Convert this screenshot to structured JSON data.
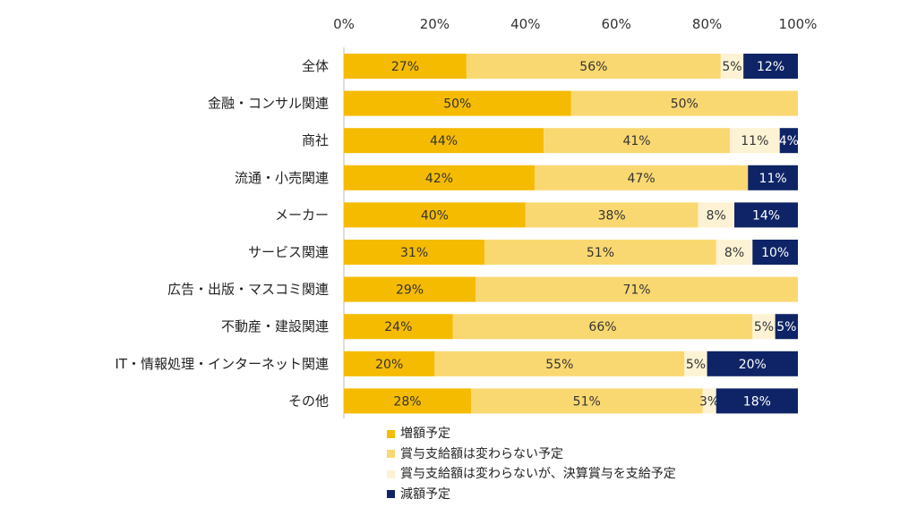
{
  "chart_data": {
    "type": "bar",
    "orientation": "horizontal",
    "stacked": true,
    "x_ticks": [
      "0%",
      "20%",
      "40%",
      "60%",
      "80%",
      "100%"
    ],
    "xlim": [
      0,
      100
    ],
    "categories": [
      "全体",
      "金融・コンサル関連",
      "商社",
      "流通・小売関連",
      "メーカー",
      "サービス関連",
      "広告・出版・マスコミ関連",
      "不動産・建設関連",
      "IT・情報処理・インターネット関連",
      "その他"
    ],
    "series": [
      {
        "name": "増額予定",
        "color": "#f5bb00",
        "label_color": "#333333",
        "values": [
          27,
          50,
          44,
          42,
          40,
          31,
          29,
          24,
          20,
          28
        ]
      },
      {
        "name": "賞与支給額は変わらない予定",
        "color": "#fad871",
        "label_color": "#333333",
        "values": [
          56,
          50,
          41,
          47,
          38,
          51,
          71,
          66,
          55,
          51
        ]
      },
      {
        "name": "賞与支給額は変わらないが、決算賞与を支給予定",
        "color": "#fdf3d4",
        "label_color": "#333333",
        "values": [
          5,
          0,
          11,
          0,
          8,
          8,
          0,
          5,
          5,
          3
        ]
      },
      {
        "name": "減額予定",
        "color": "#0f2466",
        "label_color": "#ffffff",
        "values": [
          12,
          0,
          4,
          11,
          14,
          10,
          0,
          5,
          20,
          18
        ]
      }
    ],
    "data_labels": [
      [
        "27%",
        "50%",
        "44%",
        "42%",
        "40%",
        "31%",
        "29%",
        "24%",
        "20%",
        "28%"
      ],
      [
        "56%",
        "50%",
        "41%",
        "47%",
        "38%",
        "51%",
        "71%",
        "66%",
        "55%",
        "51%"
      ],
      [
        "5%",
        "",
        "11%",
        "",
        "8%",
        "8%",
        "",
        "5%",
        "5%",
        "3%"
      ],
      [
        "12%",
        "",
        "4%",
        "11%",
        "14%",
        "10%",
        "",
        "5%",
        "20%",
        "18%"
      ]
    ],
    "legend_position": "bottom",
    "title": "",
    "xlabel": "",
    "ylabel": ""
  }
}
